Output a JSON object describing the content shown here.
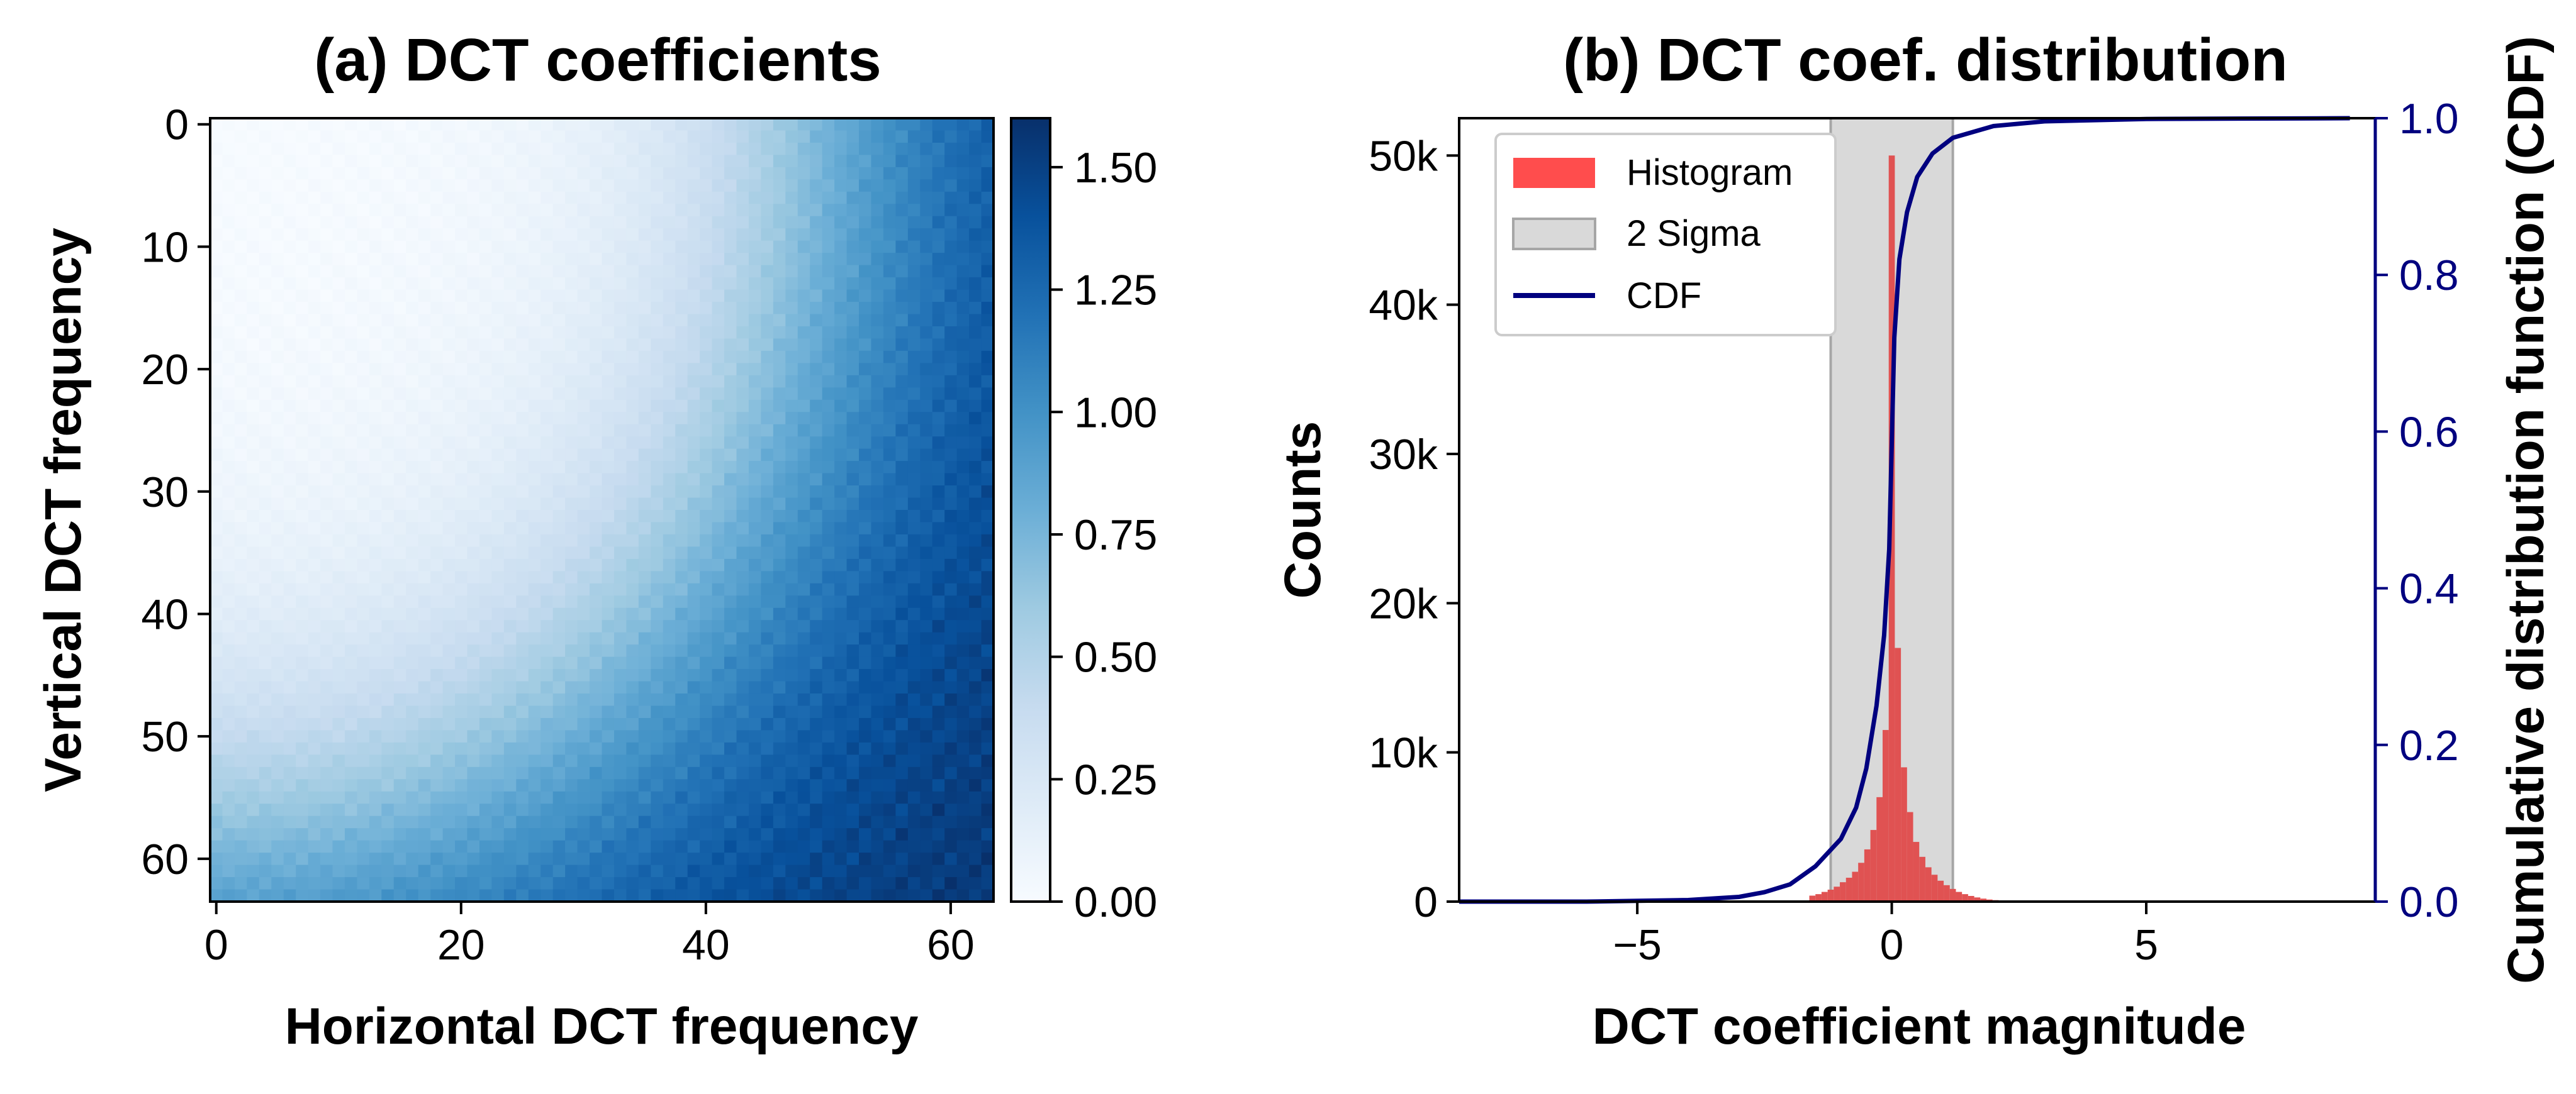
{
  "chart_data": [
    {
      "type": "heatmap",
      "title": "(a) DCT coefficients",
      "xlabel": "Horizontal DCT frequency",
      "ylabel": "Vertical DCT frequency",
      "grid_size": [
        64,
        64
      ],
      "xlim": [
        0,
        63
      ],
      "ylim": [
        0,
        63
      ],
      "x_ticks": [
        "0",
        "20",
        "40",
        "60"
      ],
      "y_ticks": [
        "0",
        "10",
        "20",
        "30",
        "40",
        "50",
        "60"
      ],
      "colormap": "Blues",
      "colorbar": {
        "range": [
          0.0,
          1.6
        ],
        "ticks": [
          "0.00",
          "0.25",
          "0.50",
          "0.75",
          "1.00",
          "1.25",
          "1.50"
        ]
      },
      "description_value_range": [
        0.0,
        1.6
      ]
    },
    {
      "type": "bar",
      "title": "(b) DCT coef. distribution",
      "xlabel": "DCT coefficient magnitude",
      "ylabel": "Counts",
      "y2label": "Cumulative distribution function (CDF)",
      "xlim": [
        -8.5,
        9.5
      ],
      "ylim": [
        0,
        52500
      ],
      "y2lim": [
        0,
        1.0
      ],
      "x_ticks": [
        "−5",
        "0",
        "5"
      ],
      "y_ticks": [
        "0",
        "10k",
        "20k",
        "30k",
        "40k",
        "50k"
      ],
      "y2_ticks": [
        "0.0",
        "0.2",
        "0.4",
        "0.6",
        "0.8",
        "1.0"
      ],
      "sigma_band": [
        -1.2,
        1.2
      ],
      "histogram": {
        "bin_width": 0.12,
        "bins": [
          {
            "x": -1.56,
            "count": 400
          },
          {
            "x": -1.44,
            "count": 500
          },
          {
            "x": -1.32,
            "count": 650
          },
          {
            "x": -1.2,
            "count": 800
          },
          {
            "x": -1.08,
            "count": 1000
          },
          {
            "x": -0.96,
            "count": 1300
          },
          {
            "x": -0.84,
            "count": 1600
          },
          {
            "x": -0.72,
            "count": 2000
          },
          {
            "x": -0.6,
            "count": 2600
          },
          {
            "x": -0.48,
            "count": 3500
          },
          {
            "x": -0.36,
            "count": 4800
          },
          {
            "x": -0.24,
            "count": 7000
          },
          {
            "x": -0.12,
            "count": 11500
          },
          {
            "x": 0.0,
            "count": 50000
          },
          {
            "x": 0.12,
            "count": 17000
          },
          {
            "x": 0.24,
            "count": 9000
          },
          {
            "x": 0.36,
            "count": 6000
          },
          {
            "x": 0.48,
            "count": 4000
          },
          {
            "x": 0.6,
            "count": 3000
          },
          {
            "x": 0.72,
            "count": 2300
          },
          {
            "x": 0.84,
            "count": 1800
          },
          {
            "x": 0.96,
            "count": 1400
          },
          {
            "x": 1.08,
            "count": 1100
          },
          {
            "x": 1.2,
            "count": 850
          },
          {
            "x": 1.32,
            "count": 650
          },
          {
            "x": 1.44,
            "count": 500
          },
          {
            "x": 1.56,
            "count": 380
          },
          {
            "x": 1.68,
            "count": 280
          },
          {
            "x": 1.8,
            "count": 200
          },
          {
            "x": 1.92,
            "count": 140
          },
          {
            "x": 2.04,
            "count": 100
          }
        ]
      },
      "cdf": [
        {
          "x": -8.5,
          "y": 0.0
        },
        {
          "x": -6.0,
          "y": 0.0
        },
        {
          "x": -4.0,
          "y": 0.002
        },
        {
          "x": -3.0,
          "y": 0.006
        },
        {
          "x": -2.5,
          "y": 0.012
        },
        {
          "x": -2.0,
          "y": 0.022
        },
        {
          "x": -1.5,
          "y": 0.045
        },
        {
          "x": -1.0,
          "y": 0.08
        },
        {
          "x": -0.7,
          "y": 0.12
        },
        {
          "x": -0.5,
          "y": 0.17
        },
        {
          "x": -0.3,
          "y": 0.25
        },
        {
          "x": -0.15,
          "y": 0.34
        },
        {
          "x": -0.05,
          "y": 0.45
        },
        {
          "x": 0.05,
          "y": 0.72
        },
        {
          "x": 0.15,
          "y": 0.82
        },
        {
          "x": 0.3,
          "y": 0.88
        },
        {
          "x": 0.5,
          "y": 0.925
        },
        {
          "x": 0.8,
          "y": 0.955
        },
        {
          "x": 1.2,
          "y": 0.975
        },
        {
          "x": 2.0,
          "y": 0.99
        },
        {
          "x": 3.0,
          "y": 0.996
        },
        {
          "x": 5.0,
          "y": 0.999
        },
        {
          "x": 9.0,
          "y": 1.0
        }
      ],
      "legend": {
        "position": "top-left",
        "entries": [
          "Histogram",
          "2 Sigma",
          "CDF"
        ]
      }
    }
  ],
  "colors": {
    "histogram": "#e05252",
    "histogram_legend": "#ff4d4d",
    "sigma_band": "#d9d9d9",
    "sigma_edge": "#a6a6a6",
    "cdf": "#00007f"
  }
}
